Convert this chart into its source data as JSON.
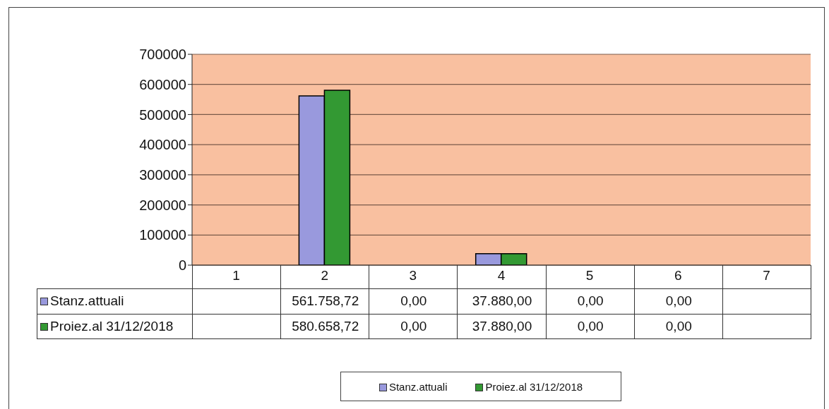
{
  "chart_data": {
    "type": "bar",
    "categories": [
      "1",
      "2",
      "3",
      "4",
      "5",
      "6",
      "7"
    ],
    "series": [
      {
        "name": "Stanz.attuali",
        "color": "#9999dd",
        "values": [
          null,
          561758.72,
          0,
          37880,
          0,
          0,
          null
        ],
        "value_labels": [
          null,
          "561.758,72",
          "0,00",
          "37.880,00",
          "0,00",
          "0,00",
          null
        ]
      },
      {
        "name": "Proiez.al 31/12/2018",
        "color": "#339933",
        "values": [
          null,
          580658.72,
          0,
          37880,
          0,
          0,
          null
        ],
        "value_labels": [
          null,
          "580.658,72",
          "0,00",
          "37.880,00",
          "0,00",
          "0,00",
          null
        ]
      }
    ],
    "ylim": [
      0,
      700000
    ],
    "yticks": [
      0,
      100000,
      200000,
      300000,
      400000,
      500000,
      600000,
      700000
    ],
    "grid": "y",
    "legend": "bottom"
  }
}
